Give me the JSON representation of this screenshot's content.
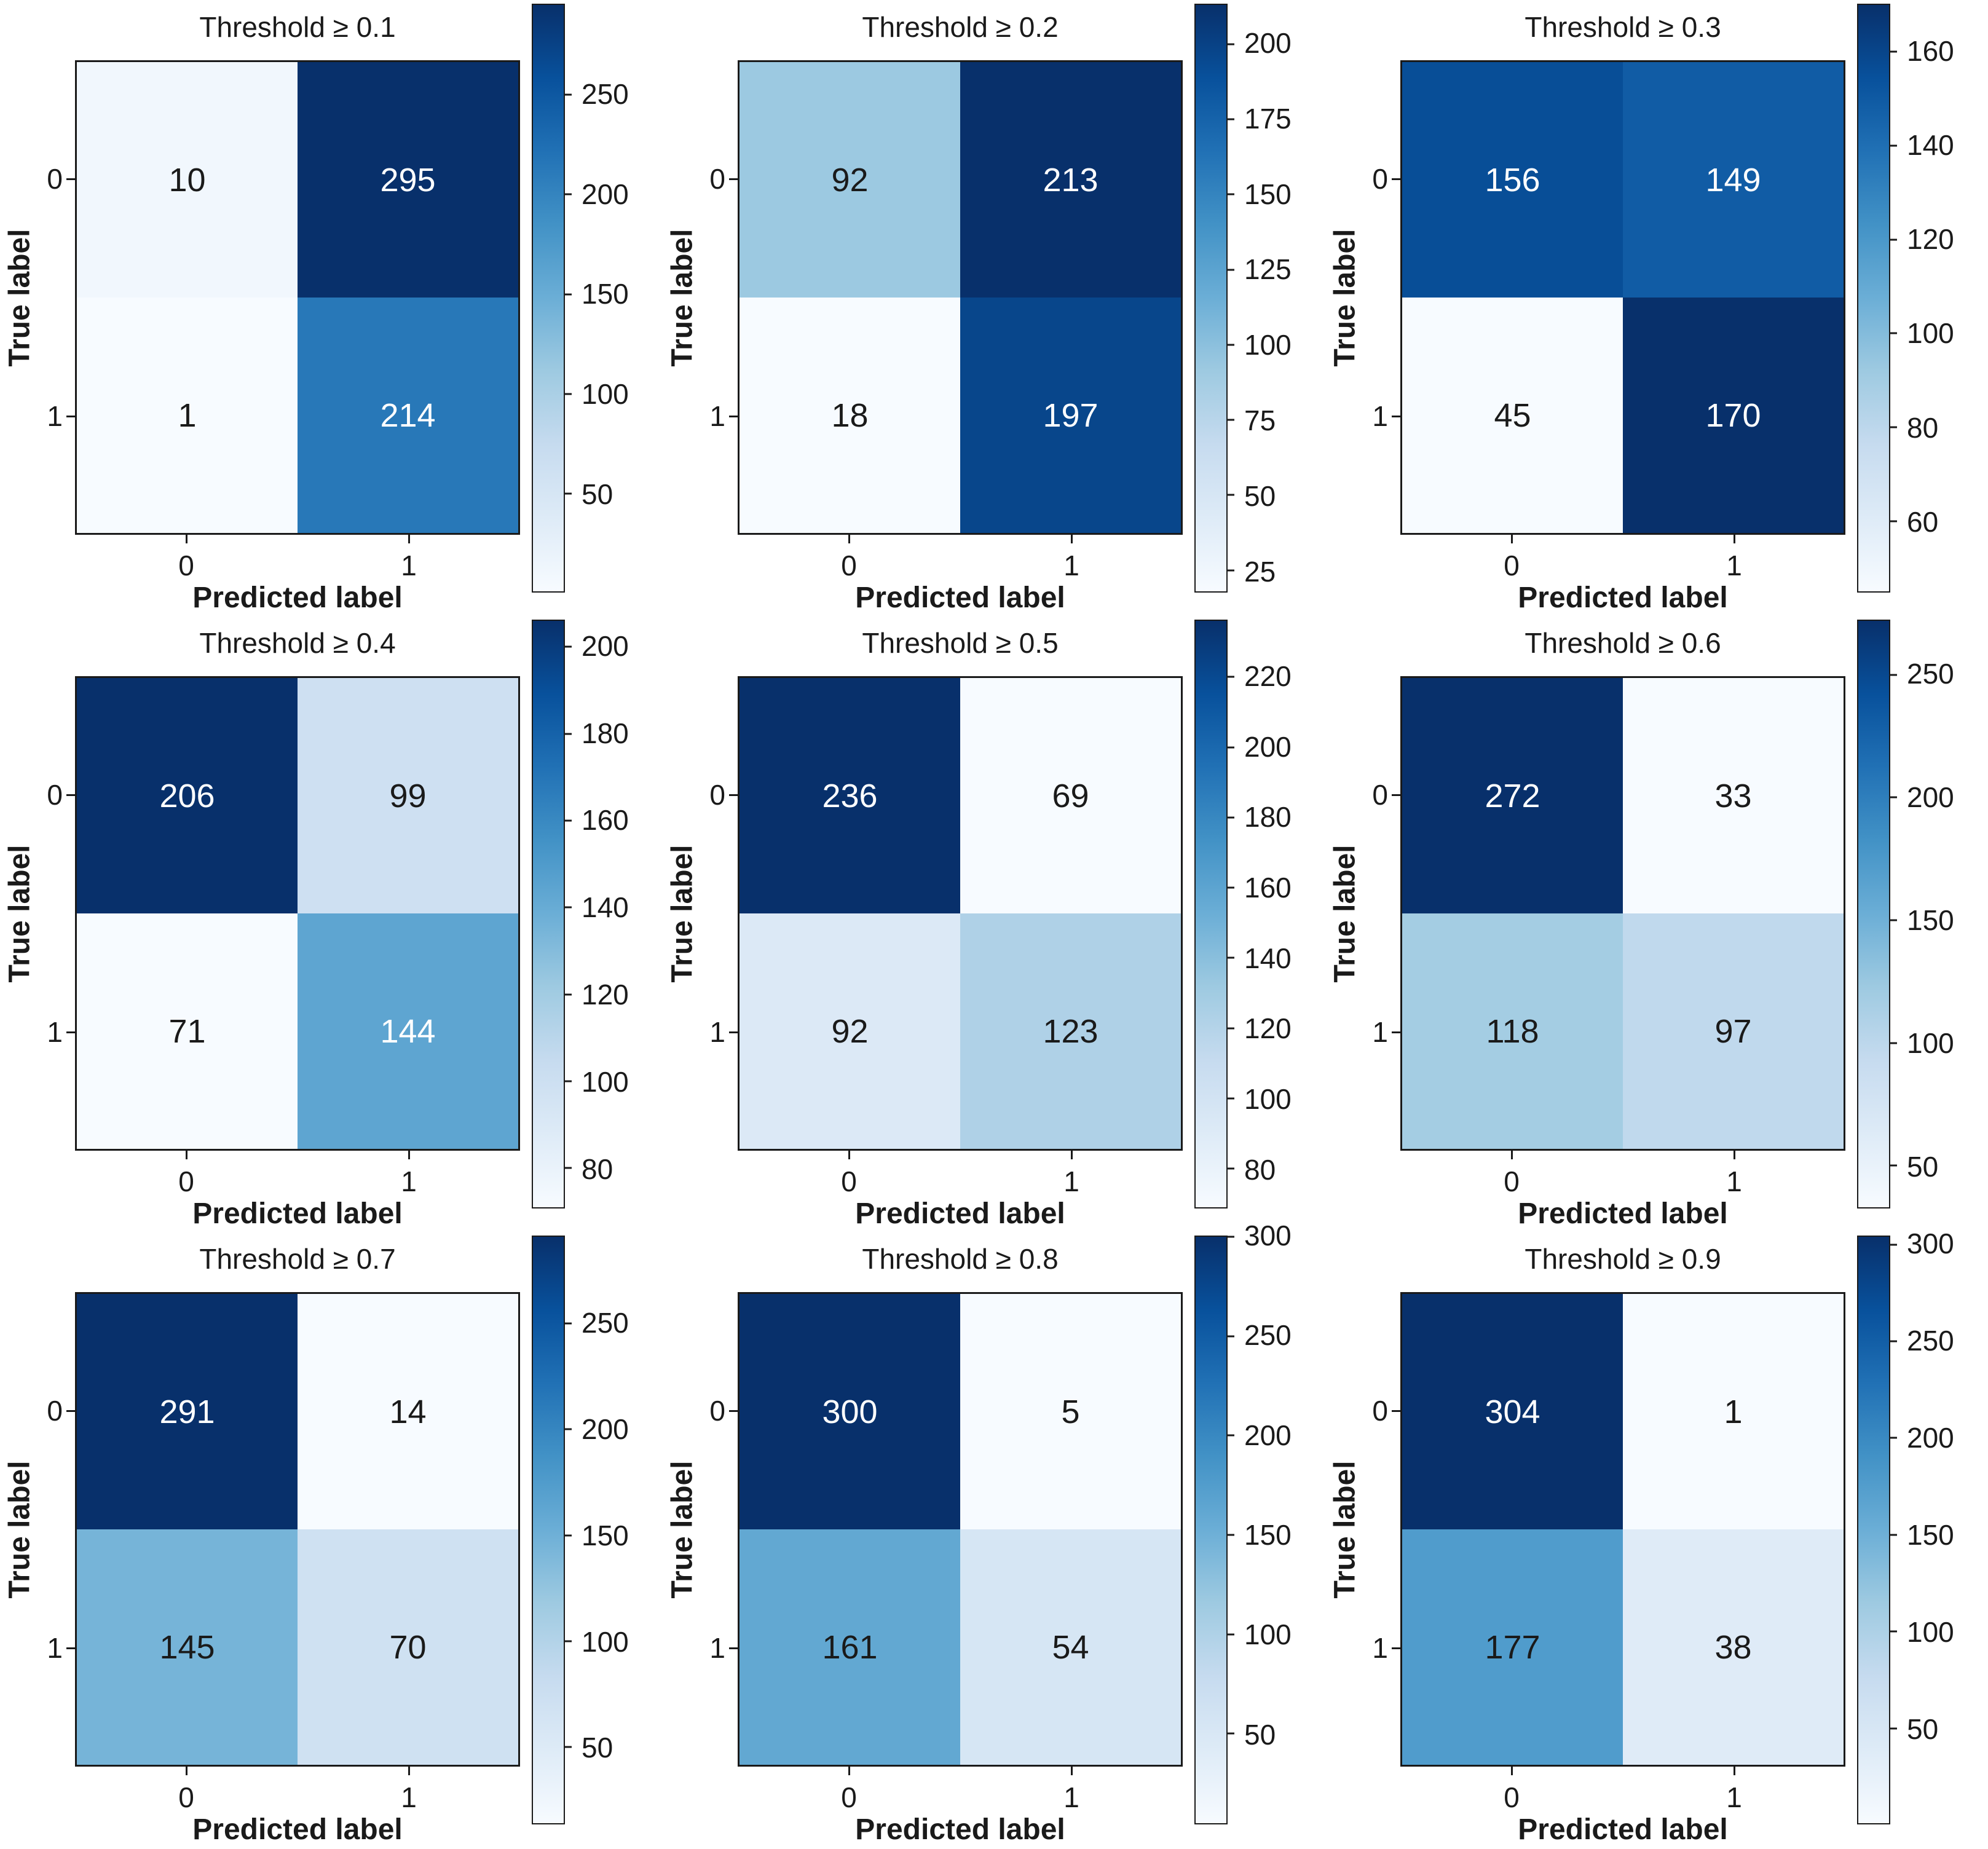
{
  "figure": {
    "ylabel": "True label",
    "xlabel": "Predicted label",
    "class_labels": [
      "0",
      "1"
    ],
    "colormap": "Blues",
    "colors": {
      "cmap_low": "#f7fbff",
      "cmap_high": "#08306b",
      "cell_text_dark": "#1a1a1a",
      "cell_text_light": "#ffffff",
      "axis_text": "#1a1a1a",
      "background": "#ffffff"
    }
  },
  "chart_data": [
    {
      "type": "heatmap",
      "title": "Threshold ≥ 0.1",
      "x": [
        "0",
        "1"
      ],
      "y": [
        "0",
        "1"
      ],
      "xlabel": "Predicted label",
      "ylabel": "True label",
      "matrix": [
        [
          10,
          295
        ],
        [
          1,
          214
        ]
      ],
      "vmin": 1,
      "vmax": 295,
      "colorbar_ticks": [
        50,
        100,
        150,
        200,
        250
      ],
      "legend_position": "right",
      "grid": false
    },
    {
      "type": "heatmap",
      "title": "Threshold ≥ 0.2",
      "x": [
        "0",
        "1"
      ],
      "y": [
        "0",
        "1"
      ],
      "xlabel": "Predicted label",
      "ylabel": "True label",
      "matrix": [
        [
          92,
          213
        ],
        [
          18,
          197
        ]
      ],
      "vmin": 18,
      "vmax": 213,
      "colorbar_ticks": [
        25,
        50,
        75,
        100,
        125,
        150,
        175,
        200
      ],
      "legend_position": "right",
      "grid": false
    },
    {
      "type": "heatmap",
      "title": "Threshold ≥ 0.3",
      "x": [
        "0",
        "1"
      ],
      "y": [
        "0",
        "1"
      ],
      "xlabel": "Predicted label",
      "ylabel": "True label",
      "matrix": [
        [
          156,
          149
        ],
        [
          45,
          170
        ]
      ],
      "vmin": 45,
      "vmax": 170,
      "colorbar_ticks": [
        60,
        80,
        100,
        120,
        140,
        160
      ],
      "legend_position": "right",
      "grid": false
    },
    {
      "type": "heatmap",
      "title": "Threshold ≥ 0.4",
      "x": [
        "0",
        "1"
      ],
      "y": [
        "0",
        "1"
      ],
      "xlabel": "Predicted label",
      "ylabel": "True label",
      "matrix": [
        [
          206,
          99
        ],
        [
          71,
          144
        ]
      ],
      "vmin": 71,
      "vmax": 206,
      "colorbar_ticks": [
        80,
        100,
        120,
        140,
        160,
        180,
        200
      ],
      "legend_position": "right",
      "grid": false
    },
    {
      "type": "heatmap",
      "title": "Threshold ≥ 0.5",
      "x": [
        "0",
        "1"
      ],
      "y": [
        "0",
        "1"
      ],
      "xlabel": "Predicted label",
      "ylabel": "True label",
      "matrix": [
        [
          236,
          69
        ],
        [
          92,
          123
        ]
      ],
      "vmin": 69,
      "vmax": 236,
      "colorbar_ticks": [
        80,
        100,
        120,
        140,
        160,
        180,
        200,
        220
      ],
      "legend_position": "right",
      "grid": false
    },
    {
      "type": "heatmap",
      "title": "Threshold ≥ 0.6",
      "x": [
        "0",
        "1"
      ],
      "y": [
        "0",
        "1"
      ],
      "xlabel": "Predicted label",
      "ylabel": "True label",
      "matrix": [
        [
          272,
          33
        ],
        [
          118,
          97
        ]
      ],
      "vmin": 33,
      "vmax": 272,
      "colorbar_ticks": [
        50,
        100,
        150,
        200,
        250
      ],
      "legend_position": "right",
      "grid": false
    },
    {
      "type": "heatmap",
      "title": "Threshold ≥ 0.7",
      "x": [
        "0",
        "1"
      ],
      "y": [
        "0",
        "1"
      ],
      "xlabel": "Predicted label",
      "ylabel": "True label",
      "matrix": [
        [
          291,
          14
        ],
        [
          145,
          70
        ]
      ],
      "vmin": 14,
      "vmax": 291,
      "colorbar_ticks": [
        50,
        100,
        150,
        200,
        250
      ],
      "legend_position": "right",
      "grid": false
    },
    {
      "type": "heatmap",
      "title": "Threshold ≥ 0.8",
      "x": [
        "0",
        "1"
      ],
      "y": [
        "0",
        "1"
      ],
      "xlabel": "Predicted label",
      "ylabel": "True label",
      "matrix": [
        [
          300,
          5
        ],
        [
          161,
          54
        ]
      ],
      "vmin": 5,
      "vmax": 300,
      "colorbar_ticks": [
        50,
        100,
        150,
        200,
        250,
        300
      ],
      "legend_position": "right",
      "grid": false
    },
    {
      "type": "heatmap",
      "title": "Threshold ≥ 0.9",
      "x": [
        "0",
        "1"
      ],
      "y": [
        "0",
        "1"
      ],
      "xlabel": "Predicted label",
      "ylabel": "True label",
      "matrix": [
        [
          304,
          1
        ],
        [
          177,
          38
        ]
      ],
      "vmin": 1,
      "vmax": 304,
      "colorbar_ticks": [
        50,
        100,
        150,
        200,
        250,
        300
      ],
      "legend_position": "right",
      "grid": false
    }
  ]
}
